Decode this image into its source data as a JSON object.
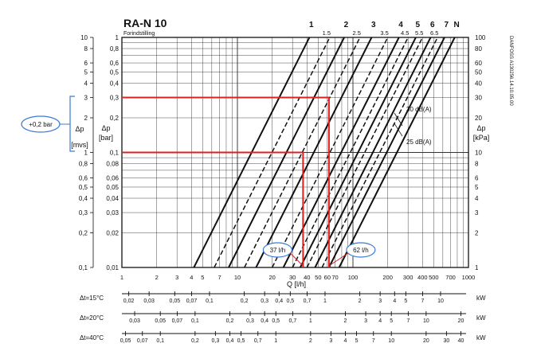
{
  "chart_data": {
    "type": "line",
    "title": "RA-N 10",
    "subtitle": "Forindstilling",
    "side_code": "DANFOSS A130256.14.10.05.00",
    "xlabel": "Q [l/h]",
    "x_scale": "log",
    "xlim": [
      1,
      1000
    ],
    "x_ticks": [
      "1",
      "2",
      "3",
      "4",
      "5",
      "7",
      "10",
      "20",
      "30",
      "40",
      "50",
      "60",
      "70",
      "100",
      "200",
      "300",
      "400",
      "500",
      "700",
      "1000"
    ],
    "y_scale": "log",
    "ylim_bar": [
      0.01,
      1
    ],
    "ylim_mvs": [
      0.1,
      10
    ],
    "ylim_kpa": [
      1,
      100
    ],
    "left_axis_label": [
      "Δp",
      "[mvs]"
    ],
    "mid_axis_label": [
      "Δp",
      "[bar]"
    ],
    "right_axis_label": [
      "Δp",
      "[kPa]"
    ],
    "y_ticks_mvs": [
      "10",
      "8",
      "6",
      "5",
      "4",
      "3",
      "2",
      "1",
      "0,8",
      "0,6",
      "0,5",
      "0,4",
      "0,3",
      "0,2",
      "0,1"
    ],
    "y_ticks_bar": [
      "1",
      "0,8",
      "0,6",
      "0,5",
      "0,4",
      "0,3",
      "0,2",
      "0,1",
      "0,08",
      "0,06",
      "0,05",
      "0,04",
      "0,03",
      "0,02",
      "0,01"
    ],
    "y_ticks_kpa": [
      "100",
      "80",
      "60",
      "50",
      "40",
      "30",
      "20",
      "10",
      "8",
      "6",
      "5",
      "4",
      "3",
      "2",
      "1"
    ],
    "grid": true,
    "series": [
      {
        "name": "1",
        "style": "solid",
        "q_at_0_01_bar": 4.2
      },
      {
        "name": "1.5",
        "style": "dashed",
        "q_at_0_01_bar": 6.3
      },
      {
        "name": "2",
        "style": "solid",
        "q_at_0_01_bar": 8.4
      },
      {
        "name": "2.5",
        "style": "dashed",
        "q_at_0_01_bar": 11.5
      },
      {
        "name": "3",
        "style": "solid",
        "q_at_0_01_bar": 14.5
      },
      {
        "name": "3.5",
        "style": "dashed",
        "q_at_0_01_bar": 20
      },
      {
        "name": "4",
        "style": "solid",
        "q_at_0_01_bar": 25
      },
      {
        "name": "4.5",
        "style": "dashed",
        "q_at_0_01_bar": 30
      },
      {
        "name": "5",
        "style": "solid",
        "q_at_0_01_bar": 35
      },
      {
        "name": "5.5",
        "style": "dashed",
        "q_at_0_01_bar": 40
      },
      {
        "name": "6",
        "style": "solid",
        "q_at_0_01_bar": 47
      },
      {
        "name": "6.5",
        "style": "dashed",
        "q_at_0_01_bar": 54
      },
      {
        "name": "7",
        "style": "solid",
        "q_at_0_01_bar": 62
      },
      {
        "name": "N",
        "style": "solid",
        "q_at_0_01_bar": 76
      }
    ],
    "noise_limits": [
      {
        "label": "30 dB(A)",
        "p_bar": 0.16
      },
      {
        "label": "25 dB(A)",
        "p_bar": 0.13
      }
    ],
    "annotations": [
      {
        "label": "37 l/h",
        "p_bar": 0.1,
        "q": 37
      },
      {
        "label": "62 l/h",
        "p_bar": 0.3,
        "q": 62
      }
    ],
    "bracket_label": "+0,2 bar",
    "power_scales": [
      {
        "label": "Δt=15°C",
        "unit": "kW",
        "ticks": [
          "0,02",
          "0,03",
          "0,05",
          "0,07",
          "0,1",
          "0,2",
          "0,3",
          "0,4",
          "0,5",
          "0,7",
          "1",
          "2",
          "3",
          "4",
          "5",
          "7",
          "10"
        ]
      },
      {
        "label": "Δt=20°C",
        "unit": "kW",
        "ticks": [
          "0,03",
          "0,05",
          "0,07",
          "0,1",
          "0,2",
          "0,3",
          "0,4",
          "0,5",
          "0,7",
          "1",
          "2",
          "3",
          "4",
          "5",
          "7",
          "10",
          "20"
        ]
      },
      {
        "label": "Δt=40°C",
        "unit": "kW",
        "ticks": [
          "0,05",
          "0,07",
          "0,1",
          "0,2",
          "0,3",
          "0,4",
          "0,5",
          "0,7",
          "1",
          "2",
          "3",
          "4",
          "5",
          "7",
          "10",
          "20",
          "30",
          "40"
        ]
      }
    ]
  },
  "colors": {
    "curve": "#111111",
    "grid": "#333333",
    "highlight": "#e02020",
    "callout": "#3a7bd5"
  }
}
